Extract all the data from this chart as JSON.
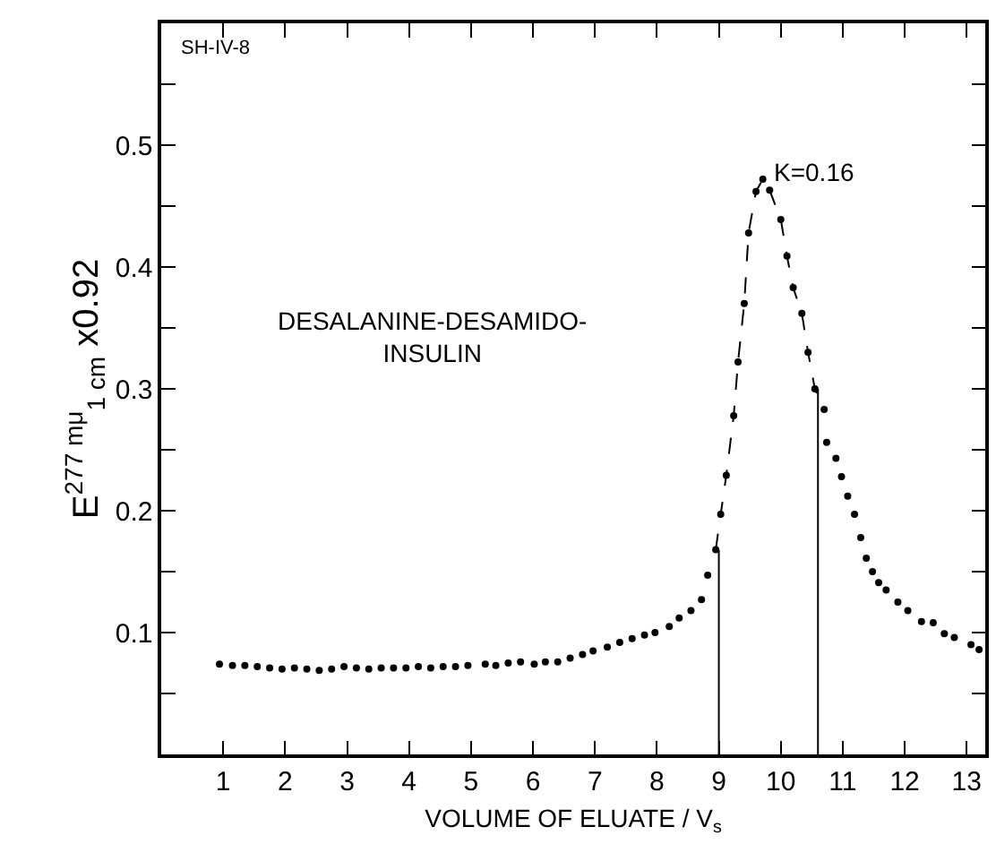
{
  "chart_data": {
    "type": "scatter",
    "xlabel": "VOLUME OF ELUATE / V$_{s}$",
    "ylabel": "E$^{277 mμ}$$_{1 cm}$ x0.92",
    "annotations": [
      "SH-IV-8",
      "DESALANINE-DESAMIDO-\nINSULIN",
      {
        "text": "K=0.16",
        "x": 9.71,
        "y": 0.472
      }
    ],
    "series": [
      {
        "color": "#000000",
        "marker": "circle",
        "x": [
          0.94,
          1.15,
          1.35,
          1.55,
          1.75,
          1.95,
          2.15,
          2.35,
          2.55,
          2.75,
          2.95,
          3.15,
          3.35,
          3.55,
          3.75,
          3.95,
          4.15,
          4.35,
          4.55,
          4.75,
          4.95,
          5.23,
          5.4,
          5.6,
          5.8,
          6.02,
          6.2,
          6.4,
          6.6,
          6.8,
          6.97,
          7.2,
          7.4,
          7.6,
          7.8,
          7.97,
          8.2,
          8.36,
          8.55,
          8.72,
          8.82,
          8.95,
          9.03,
          9.12,
          9.24,
          9.31,
          9.41,
          9.48,
          9.6,
          9.71,
          9.82,
          10.0,
          10.1,
          10.2,
          10.34,
          10.44,
          10.55,
          10.7,
          10.74,
          10.89,
          10.98,
          11.08,
          11.19,
          11.29,
          11.38,
          11.48,
          11.58,
          11.7,
          11.89,
          12.05,
          12.27,
          12.46,
          12.64,
          12.8,
          13.07,
          13.2
        ],
        "values": [
          0.074,
          0.073,
          0.073,
          0.072,
          0.071,
          0.07,
          0.071,
          0.07,
          0.069,
          0.07,
          0.072,
          0.071,
          0.07,
          0.071,
          0.071,
          0.071,
          0.072,
          0.071,
          0.072,
          0.072,
          0.073,
          0.074,
          0.073,
          0.075,
          0.076,
          0.074,
          0.076,
          0.076,
          0.079,
          0.082,
          0.085,
          0.088,
          0.092,
          0.095,
          0.098,
          0.1,
          0.105,
          0.112,
          0.118,
          0.127,
          0.147,
          0.168,
          0.197,
          0.229,
          0.278,
          0.322,
          0.37,
          0.428,
          0.462,
          0.472,
          0.463,
          0.439,
          0.409,
          0.383,
          0.362,
          0.33,
          0.3,
          0.283,
          0.256,
          0.243,
          0.228,
          0.212,
          0.197,
          0.178,
          0.161,
          0.15,
          0.141,
          0.135,
          0.125,
          0.118,
          0.109,
          0.108,
          0.099,
          0.096,
          0.09,
          0.086
        ]
      },
      {
        "type": "line",
        "color": "#000000",
        "line_style": "dashed",
        "x": [
          8.95,
          9.03,
          9.12,
          9.24,
          9.31,
          9.41,
          9.48,
          9.6,
          9.71,
          9.82,
          10.0,
          10.1,
          10.2,
          10.34,
          10.44,
          10.55,
          10.7
        ],
        "values": [
          0.168,
          0.197,
          0.229,
          0.278,
          0.322,
          0.37,
          0.428,
          0.462,
          0.472,
          0.463,
          0.439,
          0.409,
          0.383,
          0.362,
          0.33,
          0.3,
          0.283
        ]
      },
      {
        "type": "line",
        "color": "#000000",
        "line_style": "solid",
        "x": [
          9,
          9
        ],
        "values": [
          0,
          0.168
        ]
      },
      {
        "type": "line",
        "color": "#000000",
        "line_style": "solid",
        "x": [
          10.6,
          10.6
        ],
        "values": [
          0,
          0.3
        ]
      }
    ],
    "xlim": [
      0,
      13.3
    ],
    "xticks": [
      1,
      2,
      3,
      4,
      5,
      6,
      7,
      8,
      9,
      10,
      11,
      12,
      13
    ],
    "ylim": [
      0,
      0.6
    ],
    "yticks": [
      {
        "value": 0.05,
        "label": null
      },
      0.1,
      {
        "value": 0.15,
        "label": null
      },
      0.2,
      {
        "value": 0.25,
        "label": null
      },
      0.3,
      {
        "value": 0.35,
        "label": null
      },
      0.4,
      {
        "value": 0.45,
        "label": null
      },
      0.5,
      {
        "value": 0.55,
        "label": null
      }
    ]
  }
}
